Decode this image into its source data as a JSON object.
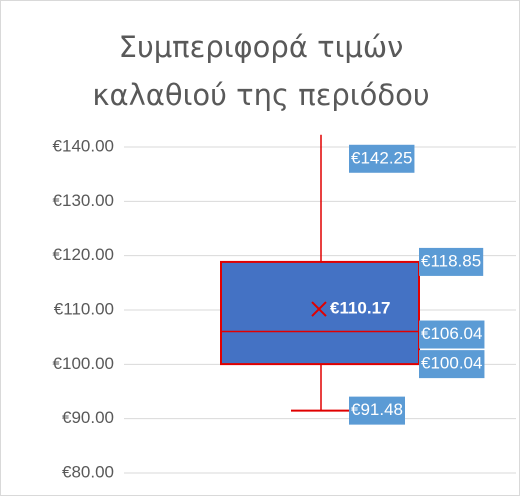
{
  "chart_data": {
    "type": "box",
    "title": "Συμπεριφορά τιμών καλαθιού της περιόδου",
    "ylim": [
      80,
      140
    ],
    "yticks": [
      {
        "value": 80,
        "label": "€80.00"
      },
      {
        "value": 90,
        "label": "€90.00"
      },
      {
        "value": 100,
        "label": "€100.00"
      },
      {
        "value": 110,
        "label": "€110.00"
      },
      {
        "value": 120,
        "label": "€120.00"
      },
      {
        "value": 130,
        "label": "€130.00"
      },
      {
        "value": 140,
        "label": "€140.00"
      }
    ],
    "grid": true,
    "series": [
      {
        "color": "#4472c4",
        "line_color": "#e00000",
        "label_color": "#5b9bd5",
        "min": 91.48,
        "q1": 100.04,
        "median": 106.04,
        "q3": 118.85,
        "max": 142.25,
        "mean": 110.17,
        "value_labels": {
          "min": "€91.48",
          "q1": "€100.04",
          "median": "€106.04",
          "q3": "€118.85",
          "max": "€142.25",
          "mean": "€110.17"
        }
      }
    ]
  }
}
